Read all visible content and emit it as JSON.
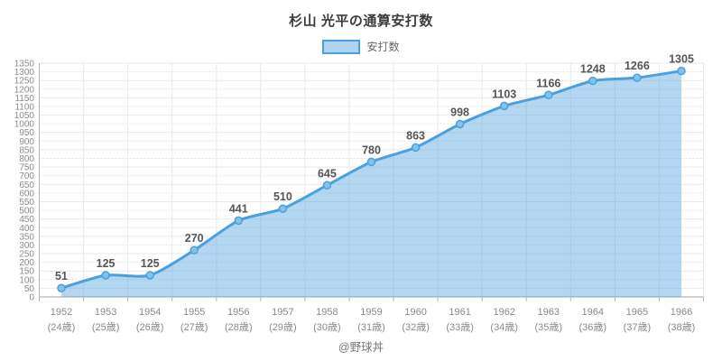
{
  "title": "杉山 光平の通算安打数",
  "legend": {
    "label": "安打数"
  },
  "watermark": "@野球丼",
  "colors": {
    "line": "#4aa0de",
    "area_fill": "rgba(77,160,222,0.42)",
    "marker_fill": "#82c3ec",
    "marker_stroke": "#4aa0de",
    "data_label": "#555555",
    "axis_text": "#8a8a8a",
    "grid_solid": "#e9e9e9",
    "grid_dashed": "#e2e2e2",
    "axis_line": "#b5b5b5",
    "title_text": "#3c3c3c",
    "legend_text": "#666666",
    "watermark_text": "#787878"
  },
  "chart_data": {
    "type": "area",
    "title": "杉山 光平の通算安打数",
    "series": [
      {
        "name": "安打数",
        "values": [
          51,
          125,
          125,
          270,
          441,
          510,
          645,
          780,
          863,
          998,
          1103,
          1166,
          1248,
          1266,
          1305
        ]
      }
    ],
    "categories": [
      "1952",
      "1953",
      "1954",
      "1955",
      "1956",
      "1957",
      "1958",
      "1959",
      "1960",
      "1961",
      "1962",
      "1963",
      "1964",
      "1965",
      "1966"
    ],
    "categories_sub": [
      "(24歳)",
      "(25歳)",
      "(26歳)",
      "(27歳)",
      "(28歳)",
      "(29歳)",
      "(30歳)",
      "(31歳)",
      "(32歳)",
      "(33歳)",
      "(34歳)",
      "(35歳)",
      "(36歳)",
      "(37歳)",
      "(38歳)"
    ],
    "ylim": [
      0,
      1350
    ],
    "ytick_step": 50,
    "grid": true,
    "legend_position": "top",
    "data_labels": true,
    "line_smoothing": true
  }
}
